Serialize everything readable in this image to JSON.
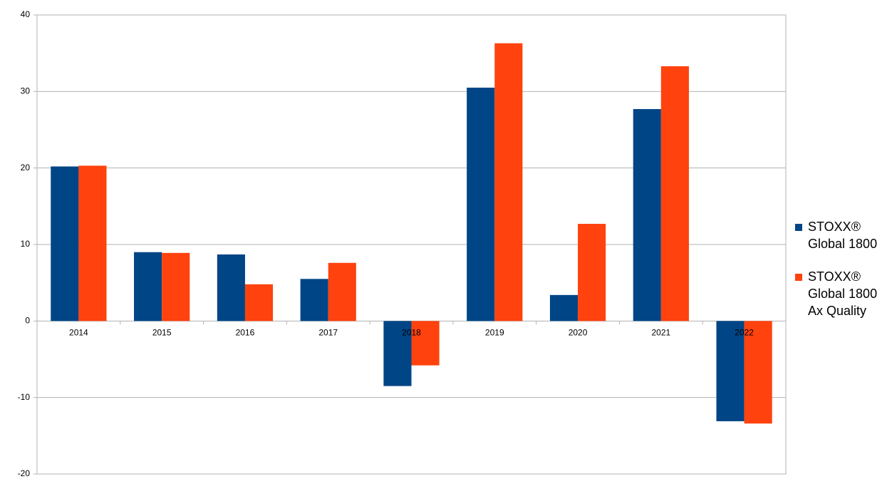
{
  "chart_data": {
    "type": "bar",
    "categories": [
      "2014",
      "2015",
      "2016",
      "2017",
      "2018",
      "2019",
      "2020",
      "2021",
      "2022"
    ],
    "series": [
      {
        "name": "STOXX® Global 1800",
        "color": "#004586",
        "values": [
          20.2,
          9.0,
          8.7,
          5.5,
          -8.5,
          30.5,
          3.4,
          27.7,
          -13.1
        ]
      },
      {
        "name": "STOXX® Global 1800 Ax Quality",
        "color": "#ff420e",
        "values": [
          20.3,
          8.9,
          4.8,
          7.6,
          -5.8,
          36.3,
          12.7,
          33.3,
          -13.4
        ]
      }
    ],
    "ylim": [
      -20,
      40
    ],
    "yticks": [
      -20,
      -10,
      0,
      10,
      20,
      30,
      40
    ],
    "grid": true,
    "legend": "right"
  }
}
